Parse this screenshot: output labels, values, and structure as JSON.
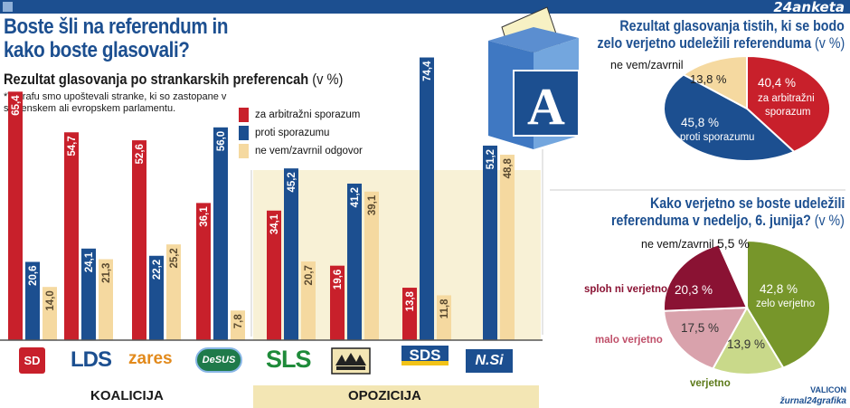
{
  "brand": "24anketa",
  "title_line1": "Boste šli na referendum in",
  "title_line2": "kako boste glasovali?",
  "subtitle": "Rezultat glasovanja po strankarskih preferencah",
  "subtitle_unit": "(v %)",
  "note_line1": "*V grafu smo upoštevali stranke, ki so zastopane v",
  "note_line2": "slovenskem ali evropskem parlamentu.",
  "ballot_letter": "A",
  "groups": {
    "koalicija": "KOALICIJA",
    "opozicija": "OPOZICIJA"
  },
  "colors": {
    "red": "#c8202b",
    "blue": "#1c4f90",
    "cream": "#f5d9a0",
    "dark_red": "#8a1233",
    "pink": "#d9a2ac",
    "light_green": "#c9d98a",
    "green": "#77962a"
  },
  "chart_data": [
    {
      "type": "bar",
      "categories": [
        "SD",
        "LDS",
        "zares",
        "DeSUS",
        "SLS",
        "SNS",
        "SDS",
        "N.Si"
      ],
      "series": [
        {
          "name": "za arbitražni sporazum",
          "values": [
            65.4,
            54.7,
            52.6,
            36.1,
            34.1,
            19.6,
            13.8,
            null
          ],
          "labels": [
            "65,4",
            "54,7",
            "52,6",
            "36,1",
            "34,1",
            "19,6",
            "13,8",
            ""
          ]
        },
        {
          "name": "proti sporazumu",
          "values": [
            20.6,
            24.1,
            22.2,
            56.0,
            45.2,
            41.2,
            74.4,
            51.2
          ],
          "labels": [
            "20,6",
            "24,1",
            "22,2",
            "56,0",
            "45,2",
            "41,2",
            "74,4",
            "51,2"
          ]
        },
        {
          "name": "ne vem/zavrnil odgovor",
          "values": [
            14.0,
            21.3,
            25.2,
            7.8,
            20.7,
            39.1,
            11.8,
            48.8
          ],
          "labels": [
            "14,0",
            "21,3",
            "25,2",
            "7,8",
            "20,7",
            "39,1",
            "11,8",
            "48,8"
          ]
        }
      ],
      "title": "Rezultat glasovanja po strankarskih preferencah",
      "ylabel": "",
      "ylim": [
        0,
        80
      ],
      "grid": false,
      "legend": "top-center"
    },
    {
      "type": "pie",
      "title_line1": "Rezultat glasovanja tistih, ki se bodo",
      "title_line2": "zelo verjetno udeležili referenduma",
      "unit": "(v %)",
      "slices": [
        {
          "name": "za arbitražni sporazum",
          "value": 40.4,
          "label": "40,4 %",
          "text1": "za arbitražni",
          "text2": "sporazum"
        },
        {
          "name": "proti sporazumu",
          "value": 45.8,
          "label": "45,8 %",
          "text1": "proti sporazumu"
        },
        {
          "name": "ne vem/zavrnil",
          "value": 13.8,
          "label": "13,8 %"
        }
      ]
    },
    {
      "type": "pie",
      "title_line1": "Kako verjetno se boste udeležili",
      "title_line2": "referenduma v nedeljo, 6. junija?",
      "unit": "(v %)",
      "slices": [
        {
          "name": "zelo verjetno",
          "value": 42.8,
          "label": "42,8 %"
        },
        {
          "name": "verjetno",
          "value": 13.9,
          "label": "13,9 %"
        },
        {
          "name": "malo verjetno",
          "value": 17.5,
          "label": "17,5 %"
        },
        {
          "name": "sploh ni verjetno",
          "value": 20.3,
          "label": "20,3 %"
        },
        {
          "name": "ne vem/zavrnil",
          "value": 5.5,
          "label": "5,5 %"
        }
      ]
    }
  ],
  "logos": {
    "sd": "SD",
    "lds": "LDS",
    "zares": "zares",
    "desus": "DeSUS",
    "sls": "SLS",
    "sds": "SDS",
    "nsi": "N.Si"
  },
  "credit1": "VALICON",
  "credit2": "žurnal24grafika"
}
